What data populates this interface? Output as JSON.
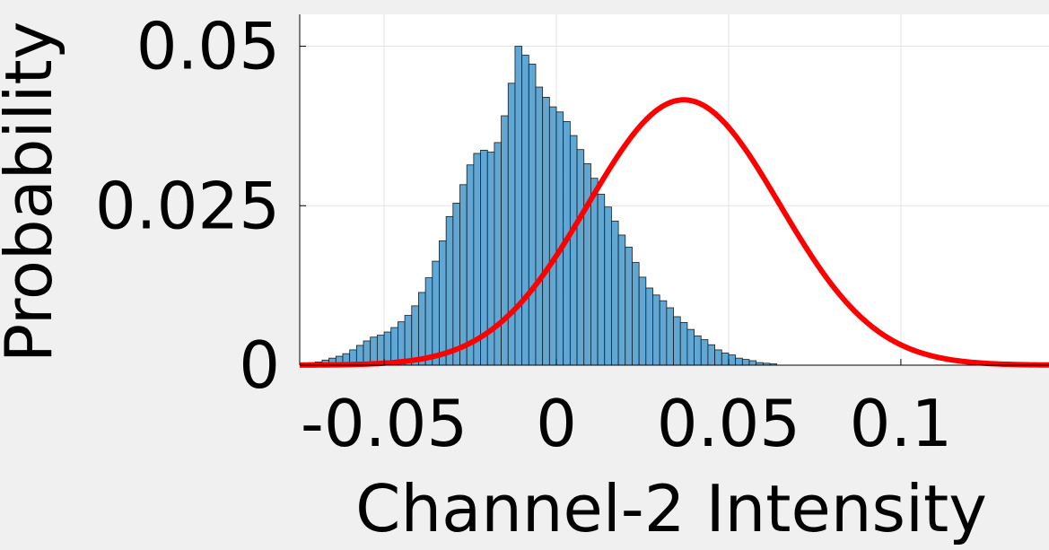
{
  "chart_data": {
    "type": "bar",
    "title": "",
    "xlabel": "Channel-2 Intensity",
    "ylabel": "Probability",
    "xlim": [
      -0.0745,
      0.143
    ],
    "ylim": [
      0,
      0.055
    ],
    "xticks": [
      -0.05,
      0,
      0.05,
      0.1
    ],
    "xtick_labels": [
      "-0.05",
      "0",
      "0.05",
      "0.1"
    ],
    "yticks": [
      0,
      0.025,
      0.05
    ],
    "ytick_labels": [
      "0",
      "0.025",
      "0.05"
    ],
    "grid": true,
    "bin_width": 0.002,
    "bin_start": -0.072,
    "bar_color": "#5fa8d6",
    "values": [
      0.0004,
      0.0005,
      0.0008,
      0.0011,
      0.0014,
      0.0018,
      0.0024,
      0.0031,
      0.0038,
      0.0044,
      0.0047,
      0.0052,
      0.0059,
      0.0068,
      0.0078,
      0.0093,
      0.0114,
      0.0137,
      0.0163,
      0.0195,
      0.0233,
      0.0254,
      0.0283,
      0.0314,
      0.0332,
      0.0337,
      0.0334,
      0.0349,
      0.0391,
      0.0442,
      0.05,
      0.0486,
      0.0472,
      0.0436,
      0.042,
      0.0405,
      0.0397,
      0.0382,
      0.036,
      0.0338,
      0.0316,
      0.0293,
      0.0268,
      0.0248,
      0.0226,
      0.0204,
      0.0185,
      0.0161,
      0.0138,
      0.0121,
      0.011,
      0.0101,
      0.009,
      0.0076,
      0.0067,
      0.0056,
      0.0046,
      0.004,
      0.0032,
      0.0024,
      0.0019,
      0.0016,
      0.0011,
      0.0009,
      0.0007,
      0.0004,
      0.0003,
      0.0002
    ],
    "fit": {
      "type": "normal",
      "mean": 0.037,
      "std": 0.0278,
      "peak": 0.0416,
      "color": "#ff0000"
    }
  }
}
